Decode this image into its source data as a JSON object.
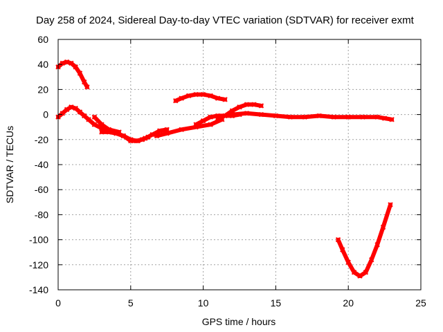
{
  "chart_data": {
    "type": "line",
    "title": "Day 258 of 2024, Sidereal Day-to-day VTEC variation (SDTVAR) for receiver exmt",
    "xlabel": "GPS time / hours",
    "ylabel": "SDTVAR / TECUs",
    "xlim": [
      0,
      25
    ],
    "ylim": [
      -140,
      60
    ],
    "xticks": [
      0,
      5,
      10,
      15,
      20,
      25
    ],
    "yticks": [
      60,
      40,
      20,
      0,
      -20,
      -40,
      -60,
      -80,
      -100,
      -120,
      -140
    ],
    "grid": true,
    "legend": "none",
    "series_color": "#ff0000",
    "series": [
      {
        "name": "arc-1",
        "points": [
          [
            0.0,
            38
          ],
          [
            0.3,
            41
          ],
          [
            0.6,
            42
          ],
          [
            0.9,
            41
          ],
          [
            1.2,
            38
          ],
          [
            1.5,
            33
          ],
          [
            1.8,
            26
          ],
          [
            2.0,
            22
          ]
        ]
      },
      {
        "name": "arc-2",
        "points": [
          [
            0.0,
            -2
          ],
          [
            0.3,
            1
          ],
          [
            0.6,
            4
          ],
          [
            0.9,
            6
          ],
          [
            1.2,
            5
          ],
          [
            1.5,
            2
          ],
          [
            1.8,
            -1
          ],
          [
            2.1,
            -4
          ],
          [
            2.5,
            -8
          ],
          [
            3.0,
            -11
          ],
          [
            3.5,
            -13
          ],
          [
            4.0,
            -15
          ],
          [
            4.5,
            -17
          ],
          [
            5.0,
            -20
          ],
          [
            5.4,
            -21
          ],
          [
            5.8,
            -20
          ],
          [
            6.2,
            -18
          ]
        ]
      },
      {
        "name": "arc-3",
        "points": [
          [
            2.5,
            -2
          ],
          [
            3.0,
            -8
          ],
          [
            3.5,
            -12
          ],
          [
            4.2,
            -14
          ]
        ]
      },
      {
        "name": "arc-4",
        "points": [
          [
            3.0,
            -14
          ],
          [
            3.5,
            -14
          ],
          [
            4.0,
            -15
          ],
          [
            4.5,
            -17
          ],
          [
            5.0,
            -21
          ],
          [
            5.5,
            -21
          ],
          [
            6.0,
            -19
          ],
          [
            6.5,
            -16
          ],
          [
            7.0,
            -13
          ],
          [
            7.5,
            -12
          ]
        ]
      },
      {
        "name": "arc-5",
        "points": [
          [
            6.8,
            -17
          ],
          [
            7.5,
            -15
          ],
          [
            8.5,
            -12
          ],
          [
            9.5,
            -10
          ],
          [
            10.5,
            -8
          ],
          [
            11.3,
            -4
          ]
        ]
      },
      {
        "name": "arc-6",
        "points": [
          [
            8.1,
            11
          ],
          [
            8.5,
            13
          ],
          [
            9.0,
            15
          ],
          [
            9.5,
            16
          ],
          [
            10.0,
            16
          ],
          [
            10.5,
            15
          ],
          [
            11.0,
            13
          ],
          [
            11.5,
            12
          ]
        ]
      },
      {
        "name": "arc-7",
        "points": [
          [
            9.5,
            -8
          ],
          [
            10.0,
            -5
          ],
          [
            10.5,
            -2
          ],
          [
            11.0,
            -1
          ],
          [
            11.5,
            -1
          ],
          [
            12.0,
            -1
          ],
          [
            12.5,
            0
          ]
        ]
      },
      {
        "name": "arc-8",
        "points": [
          [
            11.0,
            -3
          ],
          [
            11.5,
            -1
          ],
          [
            12.0,
            3
          ],
          [
            12.5,
            6
          ],
          [
            13.0,
            8
          ],
          [
            13.5,
            8
          ],
          [
            14.0,
            7
          ]
        ]
      },
      {
        "name": "arc-9",
        "points": [
          [
            12.0,
            0
          ],
          [
            13.0,
            1
          ],
          [
            14.0,
            0
          ],
          [
            15.0,
            -1
          ],
          [
            16.0,
            -2
          ],
          [
            17.0,
            -2
          ],
          [
            18.0,
            -1
          ],
          [
            19.0,
            -2
          ],
          [
            20.0,
            -2
          ],
          [
            21.0,
            -2
          ],
          [
            22.0,
            -2
          ],
          [
            22.5,
            -3
          ],
          [
            23.0,
            -4
          ]
        ]
      },
      {
        "name": "arc-10",
        "points": [
          [
            19.3,
            -100
          ],
          [
            19.6,
            -108
          ],
          [
            20.0,
            -118
          ],
          [
            20.4,
            -126
          ],
          [
            20.8,
            -129
          ],
          [
            21.2,
            -126
          ],
          [
            21.6,
            -116
          ],
          [
            22.0,
            -104
          ],
          [
            22.4,
            -90
          ],
          [
            22.9,
            -72
          ]
        ]
      }
    ]
  }
}
